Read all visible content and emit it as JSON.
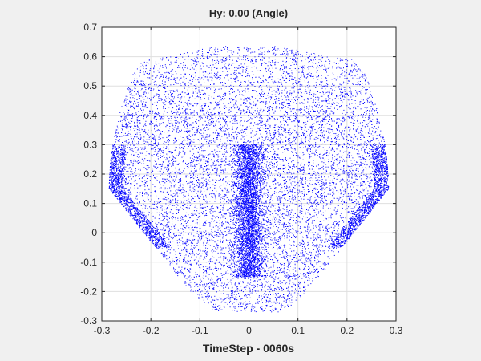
{
  "chart_data": {
    "type": "scatter",
    "title": "Hy: 0.00 (Angle)",
    "xlabel": "TimeStep - 0060s",
    "ylabel": "",
    "xlim": [
      -0.3,
      0.3
    ],
    "ylim": [
      -0.3,
      0.7
    ],
    "x_ticks": [
      "-0.3",
      "-0.2",
      "-0.1",
      "0",
      "0.1",
      "0.2",
      "0.3"
    ],
    "y_ticks": [
      "-0.3",
      "-0.2",
      "-0.1",
      "0",
      "0.1",
      "0.2",
      "0.3",
      "0.4",
      "0.5",
      "0.6",
      "0.7"
    ],
    "grid": true,
    "legend": "none",
    "marker_color": "#0000ff",
    "series": [
      {
        "points_description": "dense point cloud shaped like an inverted heart spanning x approximately -0.29 to 0.29 and y approximately -0.27 to 0.65, densest near x=0, y=0 to 0.2",
        "x_range": [
          -0.29,
          0.29
        ],
        "y_range": [
          -0.27,
          0.65
        ]
      }
    ]
  },
  "colors": {
    "figure_bg": "#f0f0f0",
    "axes_bg": "#ffffff",
    "axis": "#262626",
    "grid": "#dfdfdf",
    "points": "#0000ff"
  }
}
